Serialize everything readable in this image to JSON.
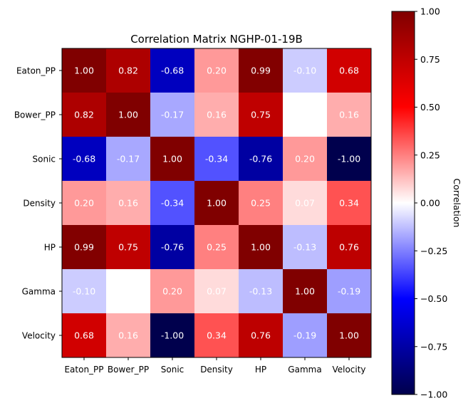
{
  "chart_data": {
    "type": "heatmap",
    "title": "Correlation Matrix NGHP-01-19B",
    "variables": [
      "Eaton_PP",
      "Bower_PP",
      "Sonic",
      "Density",
      "HP",
      "Gamma",
      "Velocity"
    ],
    "matrix": [
      [
        1.0,
        0.82,
        -0.68,
        0.2,
        0.99,
        -0.1,
        0.68
      ],
      [
        0.82,
        1.0,
        -0.17,
        0.16,
        0.75,
        0.0,
        0.16
      ],
      [
        -0.68,
        -0.17,
        1.0,
        -0.34,
        -0.76,
        0.2,
        -1.0
      ],
      [
        0.2,
        0.16,
        -0.34,
        1.0,
        0.25,
        0.07,
        0.34
      ],
      [
        0.99,
        0.75,
        -0.76,
        0.25,
        1.0,
        -0.13,
        0.76
      ],
      [
        -0.1,
        0.0,
        0.2,
        0.07,
        -0.13,
        1.0,
        -0.19
      ],
      [
        0.68,
        0.16,
        -1.0,
        0.34,
        0.76,
        -0.19,
        1.0
      ]
    ],
    "cell_labels": [
      [
        "1.00",
        "0.82",
        "-0.68",
        "0.20",
        "0.99",
        "-0.10",
        "0.68"
      ],
      [
        "0.82",
        "1.00",
        "-0.17",
        "0.16",
        "0.75",
        "",
        "0.16"
      ],
      [
        "-0.68",
        "-0.17",
        "1.00",
        "-0.34",
        "-0.76",
        "0.20",
        "-1.00"
      ],
      [
        "0.20",
        "0.16",
        "-0.34",
        "1.00",
        "0.25",
        "0.07",
        "0.34"
      ],
      [
        "0.99",
        "0.75",
        "-0.76",
        "0.25",
        "1.00",
        "-0.13",
        "0.76"
      ],
      [
        "-0.10",
        "",
        "0.20",
        "0.07",
        "-0.13",
        "1.00",
        "-0.19"
      ],
      [
        "0.68",
        "0.16",
        "-1.00",
        "0.34",
        "0.76",
        "-0.19",
        "1.00"
      ]
    ],
    "colormap": "seismic",
    "vmin": -1.0,
    "vmax": 1.0,
    "colorbar": {
      "label": "Correlation",
      "ticks": [
        1.0,
        0.75,
        0.5,
        0.25,
        0.0,
        -0.25,
        -0.5,
        -0.75,
        -1.0
      ],
      "tick_labels": [
        "1.00",
        "0.75",
        "0.50",
        "0.25",
        "0.00",
        "−0.25",
        "−0.50",
        "−0.75",
        "−1.00"
      ],
      "placement": "right"
    },
    "grid": false
  }
}
